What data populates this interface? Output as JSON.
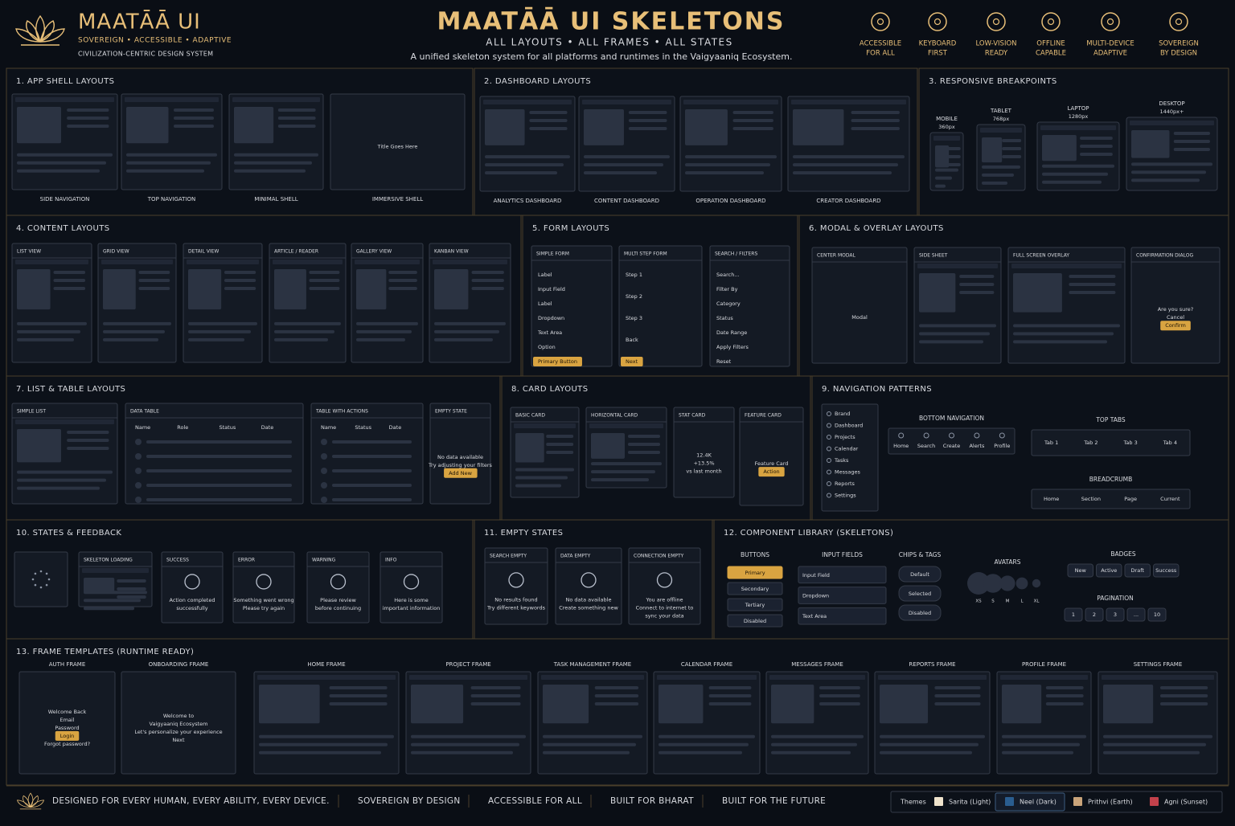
{
  "header": {
    "brand": "MAATĀĀ UI",
    "tagline": "SOVEREIGN • ACCESSIBLE • ADAPTIVE",
    "subtitle": "CIVILIZATION-CENTRIC DESIGN SYSTEM",
    "title": "MAATĀĀ UI SKELETONS",
    "kicker": "ALL LAYOUTS • ALL FRAMES • ALL STATES",
    "description": "A unified skeleton system for all platforms and runtimes in the Vaigyaaniq Ecosystem.",
    "features": [
      {
        "lines": [
          "ACCESSIBLE",
          "FOR ALL"
        ]
      },
      {
        "lines": [
          "KEYBOARD",
          "FIRST"
        ]
      },
      {
        "lines": [
          "LOW-VISION",
          "READY"
        ]
      },
      {
        "lines": [
          "OFFLINE",
          "CAPABLE"
        ]
      },
      {
        "lines": [
          "MULTI-DEVICE",
          "ADAPTIVE"
        ]
      },
      {
        "lines": [
          "SOVEREIGN",
          "BY DESIGN"
        ]
      }
    ]
  },
  "sections": [
    {
      "title": "1. APP SHELL LAYOUTS",
      "items": [
        {
          "label": "SIDE NAVIGATION"
        },
        {
          "label": "TOP NAVIGATION"
        },
        {
          "label": "MINIMAL SHELL"
        },
        {
          "label": "IMMERSIVE SHELL",
          "texts": [
            "Title Goes Here"
          ]
        }
      ]
    },
    {
      "title": "2. DASHBOARD LAYOUTS",
      "items": [
        {
          "label": "ANALYTICS DASHBOARD"
        },
        {
          "label": "CONTENT DASHBOARD"
        },
        {
          "label": "OPERATION DASHBOARD"
        },
        {
          "label": "CREATOR DASHBOARD"
        }
      ]
    },
    {
      "title": "3. RESPONSIVE BREAKPOINTS",
      "items": [
        {
          "label": "MOBILE",
          "texts": [
            "360px"
          ]
        },
        {
          "label": "TABLET",
          "texts": [
            "768px"
          ]
        },
        {
          "label": "LAPTOP",
          "texts": [
            "1280px"
          ]
        },
        {
          "label": "DESKTOP",
          "texts": [
            "1440px+"
          ]
        }
      ]
    },
    {
      "title": "4. CONTENT LAYOUTS",
      "items": [
        {
          "label": "LIST VIEW"
        },
        {
          "label": "GRID VIEW"
        },
        {
          "label": "DETAIL VIEW"
        },
        {
          "label": "ARTICLE / READER"
        },
        {
          "label": "GALLERY VIEW"
        },
        {
          "label": "KANBAN VIEW"
        }
      ]
    },
    {
      "title": "5. FORM LAYOUTS",
      "items": [
        {
          "label": "SIMPLE FORM",
          "texts": [
            "Label",
            "Input Field",
            "Label",
            "Dropdown",
            "Text Area",
            "Option",
            "Primary Button"
          ]
        },
        {
          "label": "MULTI STEP FORM",
          "texts": [
            "Step 1",
            "Step 2",
            "Step 3",
            "Back",
            "Next"
          ]
        },
        {
          "label": "SEARCH / FILTERS",
          "texts": [
            "Search...",
            "Filter By",
            "Category",
            "Status",
            "Date Range",
            "Apply Filters",
            "Reset"
          ]
        }
      ]
    },
    {
      "title": "6. MODAL & OVERLAY LAYOUTS",
      "items": [
        {
          "label": "CENTER MODAL",
          "texts": [
            "Modal"
          ]
        },
        {
          "label": "SIDE SHEET"
        },
        {
          "label": "FULL SCREEN OVERLAY"
        },
        {
          "label": "CONFIRMATION DIALOG",
          "texts": [
            "Are you sure?",
            "Cancel",
            "Confirm"
          ]
        }
      ]
    },
    {
      "title": "7. LIST & TABLE LAYOUTS",
      "items": [
        {
          "label": "SIMPLE LIST"
        },
        {
          "label": "DATA TABLE",
          "texts": [
            "Name",
            "Role",
            "Status",
            "Date"
          ]
        },
        {
          "label": "TABLE WITH ACTIONS",
          "texts": [
            "Name",
            "Status",
            "Date"
          ]
        },
        {
          "label": "EMPTY STATE",
          "texts": [
            "No data available",
            "Try adjusting your filters",
            "Add New"
          ]
        }
      ]
    },
    {
      "title": "8. CARD LAYOUTS",
      "items": [
        {
          "label": "BASIC CARD"
        },
        {
          "label": "HORIZONTAL CARD"
        },
        {
          "label": "STAT CARD",
          "texts": [
            "12.4K",
            "+13.5%",
            "vs last month"
          ]
        },
        {
          "label": "FEATURE CARD",
          "texts": [
            "Feature Card",
            "Action"
          ]
        }
      ]
    },
    {
      "title": "9. NAVIGATION PATTERNS",
      "items": [
        {
          "texts": [
            "Brand",
            "Dashboard",
            "Projects",
            "Calendar",
            "Tasks",
            "Messages",
            "Reports",
            "Settings"
          ]
        },
        {
          "label": "BOTTOM NAVIGATION",
          "texts": [
            "Home",
            "Search",
            "Create",
            "Alerts",
            "Profile"
          ]
        },
        {
          "label": "TOP TABS",
          "texts": [
            "Tab 1",
            "Tab 2",
            "Tab 3",
            "Tab 4"
          ]
        },
        {
          "label": "BREADCRUMB",
          "texts": [
            "Home",
            "Section",
            "Page",
            "Current"
          ]
        }
      ]
    },
    {
      "title": "10. STATES & FEEDBACK",
      "items": [
        {
          "label": "SKELETON LOADING"
        },
        {
          "label": "SUCCESS",
          "texts": [
            "Action completed",
            "successfully"
          ]
        },
        {
          "label": "ERROR",
          "texts": [
            "Something went wrong",
            "Please try again"
          ]
        },
        {
          "label": "WARNING",
          "texts": [
            "Please review",
            "before continuing"
          ]
        },
        {
          "label": "INFO",
          "texts": [
            "Here is some",
            "important information"
          ]
        }
      ]
    },
    {
      "title": "11. EMPTY STATES",
      "items": [
        {
          "label": "SEARCH EMPTY",
          "texts": [
            "No results found",
            "Try different keywords"
          ]
        },
        {
          "label": "DATA EMPTY",
          "texts": [
            "No data available",
            "Create something new"
          ]
        },
        {
          "label": "CONNECTION EMPTY",
          "texts": [
            "You are offline",
            "Connect to internet to",
            "sync your data"
          ]
        }
      ]
    },
    {
      "title": "12. COMPONENT LIBRARY (SKELETONS)",
      "items": [
        {
          "label": "BUTTONS",
          "texts": [
            "Primary",
            "Secondary",
            "Tertiary",
            "Disabled"
          ]
        },
        {
          "label": "INPUT FIELDS",
          "texts": [
            "Input Field",
            "Dropdown",
            "Text Area"
          ]
        },
        {
          "label": "CHIPS & TAGS",
          "texts": [
            "Default",
            "Selected",
            "Disabled"
          ]
        },
        {
          "label": "AVATARS",
          "texts": [
            "XS",
            "S",
            "M",
            "L",
            "XL"
          ]
        },
        {
          "label": "BADGES",
          "texts": [
            "New",
            "Active",
            "Draft",
            "Success"
          ]
        },
        {
          "label": "PAGINATION",
          "texts": [
            "1",
            "2",
            "3",
            "...",
            "10"
          ]
        }
      ]
    },
    {
      "title": "13. FRAME TEMPLATES (RUNTIME READY)",
      "items": [
        {
          "label": "AUTH FRAME",
          "texts": [
            "Welcome Back",
            "Email",
            "Password",
            "Login",
            "Forgot password?"
          ]
        },
        {
          "label": "ONBOARDING FRAME",
          "texts": [
            "Welcome to",
            "Vaigyaaniq Ecosystem",
            "Let's personalize your experience",
            "Next"
          ]
        },
        {
          "label": "HOME FRAME"
        },
        {
          "label": "PROJECT FRAME"
        },
        {
          "label": "TASK MANAGEMENT FRAME"
        },
        {
          "label": "CALENDAR FRAME"
        },
        {
          "label": "MESSAGES FRAME"
        },
        {
          "label": "REPORTS FRAME"
        },
        {
          "label": "PROFILE FRAME"
        },
        {
          "label": "SETTINGS FRAME"
        }
      ]
    }
  ],
  "footer": {
    "statement": "DESIGNED FOR EVERY HUMAN, EVERY ABILITY, EVERY DEVICE.",
    "pillars": [
      "SOVEREIGN BY DESIGN",
      "ACCESSIBLE FOR ALL",
      "BUILT FOR BHARAT",
      "BUILT FOR THE FUTURE"
    ],
    "themes_label": "Themes",
    "themes": [
      {
        "name": "Sarita (Light)",
        "color": "#efe3cc"
      },
      {
        "name": "Neel (Dark)",
        "color": "#2a5d8f"
      },
      {
        "name": "Prithvi (Earth)",
        "color": "#c9a47a"
      },
      {
        "name": "Agni (Sunset)",
        "color": "#c2414b"
      }
    ]
  }
}
